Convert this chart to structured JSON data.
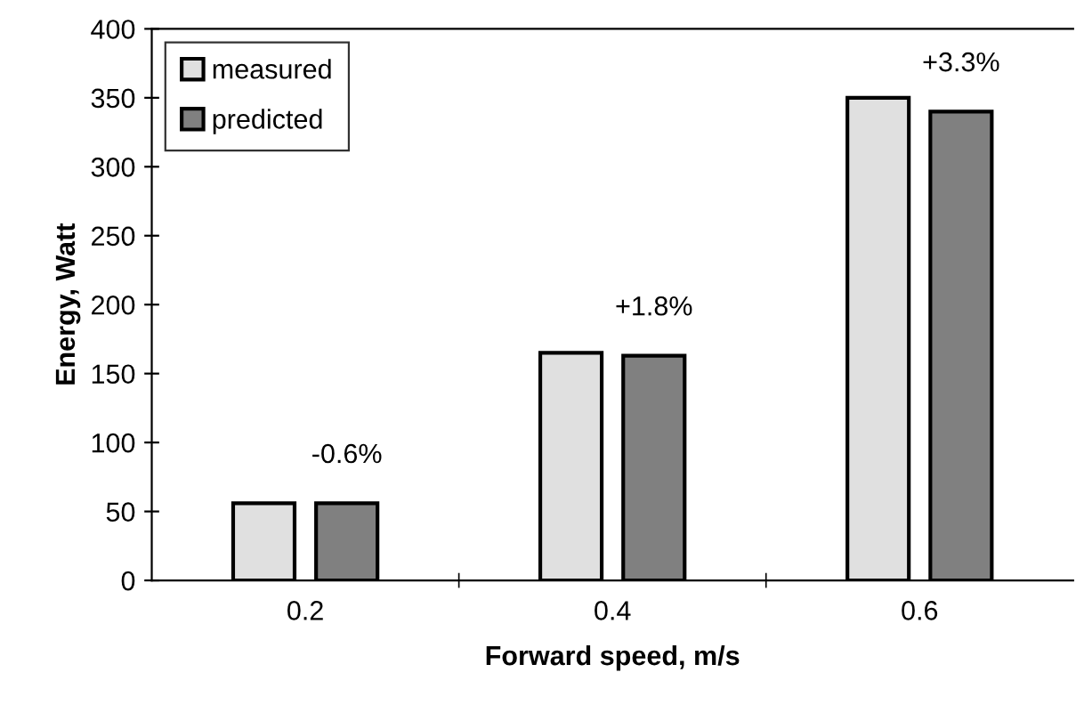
{
  "chart_data": {
    "type": "bar",
    "xlabel": "Forward speed, m/s",
    "ylabel": "Energy, Watt",
    "categories": [
      "0.2",
      "0.4",
      "0.6"
    ],
    "series": [
      {
        "name": "measured",
        "color": "#e0e0e0",
        "values": [
          56,
          165,
          350
        ]
      },
      {
        "name": "predicted",
        "color": "#808080",
        "values": [
          56,
          163,
          340
        ]
      }
    ],
    "annotations": [
      "-0.6%",
      "+1.8%",
      "+3.3%"
    ],
    "ylim": [
      0,
      400
    ],
    "yticks": [
      0,
      50,
      100,
      150,
      200,
      250,
      300,
      350,
      400
    ],
    "grid": false,
    "legend": "top left"
  }
}
